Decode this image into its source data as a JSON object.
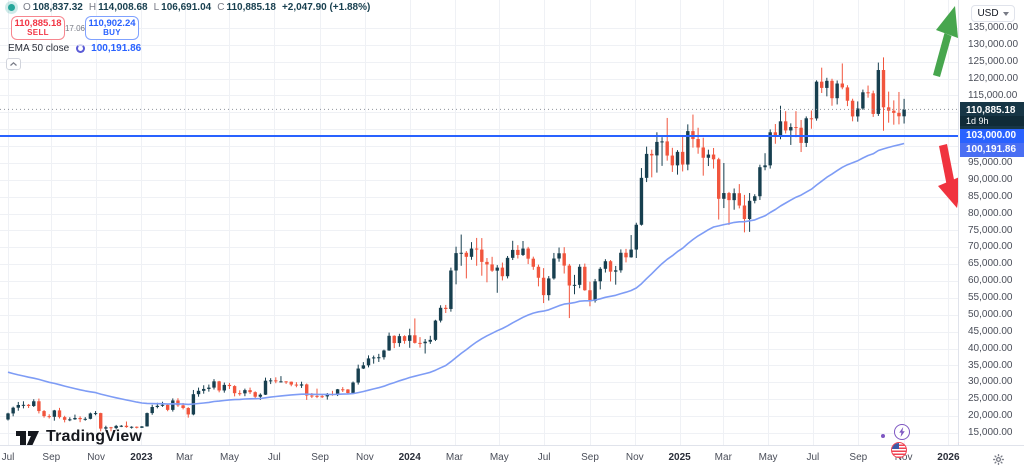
{
  "legend": {
    "ohlc": {
      "open_label": "O",
      "open": "108,837.32",
      "high_label": "H",
      "high": "114,008.68",
      "low_label": "L",
      "low": "106,691.04",
      "close_label": "C",
      "close": "110,885.18",
      "change": "+2,047.90 (+1.88%)"
    },
    "sell_button": {
      "price": "110,885.18",
      "label": "SELL"
    },
    "spread": "17.06",
    "buy_button": {
      "price": "110,902.24",
      "label": "BUY"
    },
    "ema_row": {
      "label": "EMA 50 close",
      "value": "100,191.86"
    }
  },
  "price_axis": {
    "currency": "USD",
    "tags": {
      "last": {
        "price_text": "110,885.18",
        "countdown": "1d 9h"
      },
      "line": {
        "price_text": "103,000.00"
      },
      "ema": {
        "price_text": "100,191.86"
      }
    }
  },
  "watermark_text": "TradingView",
  "colors": {
    "up": "#173F4F",
    "down": "#F1553D",
    "ema_line": "#7E9CF5",
    "level_line": "#2962FF",
    "last_price_line": "#8F939C",
    "grid": "#EFF1F5",
    "tag_last_bg": "#173646",
    "tag_countdown_bg": "#102B38",
    "tag_line_bg": "#2962FF",
    "tag_ema_bg": "#4A6FF3",
    "arrow_up": "#47A64E",
    "arrow_down": "#F0333F"
  },
  "chart_data": {
    "type": "candlestick",
    "timeframe": "weekly",
    "x_start": 8,
    "x_step": 5.15,
    "price_top": 143296,
    "price_bottom": 11444,
    "ylabel_format": "thousands-usd",
    "grid": true,
    "y_ticks": [
      135000,
      130000,
      125000,
      120000,
      115000,
      110000,
      105000,
      100000,
      95000,
      90000,
      85000,
      80000,
      75000,
      70000,
      65000,
      60000,
      55000,
      50000,
      45000,
      40000,
      35000,
      30000,
      25000,
      20000,
      15000
    ],
    "x_ticks": [
      {
        "label": "Jul",
        "week": 0.0
      },
      {
        "label": "Sep",
        "week": 8.4
      },
      {
        "label": "Nov",
        "week": 17.1
      },
      {
        "label": "2023",
        "week": 25.9,
        "year": true
      },
      {
        "label": "Mar",
        "week": 34.3
      },
      {
        "label": "May",
        "week": 43.0
      },
      {
        "label": "Jul",
        "week": 51.7
      },
      {
        "label": "Sep",
        "week": 60.6
      },
      {
        "label": "Nov",
        "week": 69.3
      },
      {
        "label": "2024",
        "week": 78.0,
        "year": true
      },
      {
        "label": "Mar",
        "week": 86.7
      },
      {
        "label": "May",
        "week": 95.4
      },
      {
        "label": "Jul",
        "week": 104.1
      },
      {
        "label": "Sep",
        "week": 113.0
      },
      {
        "label": "Nov",
        "week": 121.7
      },
      {
        "label": "2025",
        "week": 130.4,
        "year": true
      },
      {
        "label": "Mar",
        "week": 138.9
      },
      {
        "label": "May",
        "week": 147.6
      },
      {
        "label": "Jul",
        "week": 156.3
      },
      {
        "label": "Sep",
        "week": 165.1
      },
      {
        "label": "Nov",
        "week": 173.9
      },
      {
        "label": "2026",
        "week": 182.6,
        "year": true
      }
    ],
    "horizontal_line": 103000,
    "last_price": 110885.18,
    "ema": {
      "period": 50,
      "seed": 33500,
      "last_value": 100191.86
    },
    "candles": [
      [
        19000,
        21000,
        18700,
        20800
      ],
      [
        20800,
        22800,
        19950,
        22500
      ],
      [
        22500,
        24200,
        21600,
        23300
      ],
      [
        23300,
        24400,
        22300,
        23350
      ],
      [
        23350,
        23600,
        22400,
        23000
      ],
      [
        23000,
        25000,
        22700,
        24400
      ],
      [
        24400,
        25200,
        20800,
        21500
      ],
      [
        21500,
        21800,
        19550,
        20000
      ],
      [
        20000,
        20550,
        19300,
        19800
      ],
      [
        19800,
        21850,
        18650,
        21700
      ],
      [
        21700,
        22450,
        19300,
        19700
      ],
      [
        19700,
        20100,
        18150,
        18900
      ],
      [
        18900,
        19650,
        18500,
        19050
      ],
      [
        19050,
        20450,
        18900,
        19450
      ],
      [
        19450,
        19950,
        18200,
        19100
      ],
      [
        19100,
        19700,
        18650,
        19200
      ],
      [
        19200,
        21050,
        19050,
        20800
      ],
      [
        20800,
        21500,
        20250,
        20900
      ],
      [
        20900,
        21000,
        15500,
        16300
      ],
      [
        16300,
        17150,
        15750,
        16700
      ],
      [
        16700,
        16800,
        15500,
        16450
      ],
      [
        16450,
        17400,
        16050,
        17100
      ],
      [
        17100,
        17350,
        16750,
        17150
      ],
      [
        17150,
        18400,
        16550,
        16750
      ],
      [
        16750,
        17000,
        16300,
        16850
      ],
      [
        16850,
        16950,
        16350,
        16550
      ],
      [
        16550,
        17050,
        16500,
        16950
      ],
      [
        16950,
        21050,
        16900,
        20900
      ],
      [
        20900,
        23350,
        20400,
        22700
      ],
      [
        22700,
        23950,
        22300,
        23050
      ],
      [
        23050,
        24250,
        22750,
        23350
      ],
      [
        23350,
        23450,
        21450,
        21850
      ],
      [
        21850,
        25250,
        21350,
        24650
      ],
      [
        24650,
        25300,
        22750,
        23200
      ],
      [
        23200,
        23900,
        22000,
        22400
      ],
      [
        22400,
        22650,
        19550,
        20500
      ],
      [
        20500,
        27750,
        20250,
        26500
      ],
      [
        26500,
        28450,
        25750,
        27500
      ],
      [
        27500,
        29150,
        26650,
        28050
      ],
      [
        28050,
        29350,
        27250,
        28450
      ],
      [
        28450,
        30950,
        27900,
        30300
      ],
      [
        30300,
        30450,
        27050,
        27600
      ],
      [
        27600,
        29950,
        26950,
        29250
      ],
      [
        29250,
        29850,
        28050,
        28900
      ],
      [
        28900,
        29150,
        25850,
        26800
      ],
      [
        26800,
        27650,
        26050,
        26750
      ],
      [
        26750,
        28150,
        25900,
        27700
      ],
      [
        27700,
        28450,
        26550,
        27100
      ],
      [
        27100,
        27350,
        25350,
        25750
      ],
      [
        25750,
        26750,
        24800,
        26350
      ],
      [
        26350,
        31400,
        26250,
        30500
      ],
      [
        30500,
        31250,
        29500,
        30600
      ],
      [
        30600,
        31500,
        29750,
        30300
      ],
      [
        30300,
        31850,
        29950,
        30300
      ],
      [
        30300,
        30350,
        29550,
        30200
      ],
      [
        30200,
        30250,
        28850,
        29350
      ],
      [
        29350,
        30050,
        28550,
        29050
      ],
      [
        29050,
        30200,
        28350,
        29400
      ],
      [
        29400,
        29650,
        24800,
        26100
      ],
      [
        26100,
        26850,
        25350,
        26000
      ],
      [
        26000,
        28150,
        25350,
        25900
      ],
      [
        25900,
        26450,
        25350,
        25850
      ],
      [
        25850,
        26850,
        24900,
        26550
      ],
      [
        26550,
        27500,
        26050,
        26250
      ],
      [
        26250,
        28050,
        25950,
        27950
      ],
      [
        27950,
        28600,
        27150,
        27900
      ],
      [
        27900,
        28000,
        26550,
        26850
      ],
      [
        26850,
        30250,
        26650,
        29950
      ],
      [
        29950,
        35250,
        29350,
        34100
      ],
      [
        34100,
        36000,
        33950,
        35050
      ],
      [
        35050,
        38000,
        34450,
        37100
      ],
      [
        37100,
        37950,
        35550,
        37400
      ],
      [
        37400,
        38450,
        36050,
        37450
      ],
      [
        37450,
        39700,
        36750,
        39450
      ],
      [
        39450,
        44750,
        39350,
        43800
      ],
      [
        43800,
        43950,
        40150,
        41650
      ],
      [
        41650,
        44400,
        40550,
        43700
      ],
      [
        43700,
        43950,
        41450,
        42300
      ],
      [
        42300,
        45900,
        40250,
        43950
      ],
      [
        43950,
        48950,
        41500,
        41700
      ],
      [
        41700,
        43400,
        40300,
        41600
      ],
      [
        41600,
        42850,
        38550,
        42050
      ],
      [
        42050,
        43800,
        41400,
        42600
      ],
      [
        42600,
        48550,
        42250,
        48300
      ],
      [
        48300,
        52850,
        47750,
        52100
      ],
      [
        52100,
        52950,
        50550,
        51750
      ],
      [
        51750,
        64000,
        50950,
        63150
      ],
      [
        63150,
        70200,
        59050,
        68300
      ],
      [
        68300,
        73800,
        64550,
        68400
      ],
      [
        68400,
        68900,
        60800,
        67200
      ],
      [
        67200,
        71550,
        66350,
        69650
      ],
      [
        69650,
        72800,
        64550,
        69350
      ],
      [
        69350,
        72750,
        61600,
        65700
      ],
      [
        65700,
        66850,
        59650,
        64950
      ],
      [
        64950,
        67200,
        62750,
        63100
      ],
      [
        63100,
        64750,
        56550,
        64000
      ],
      [
        64000,
        65500,
        60200,
        61450
      ],
      [
        61450,
        67450,
        60800,
        66900
      ],
      [
        66900,
        71950,
        66250,
        69250
      ],
      [
        69250,
        70650,
        66700,
        67750
      ],
      [
        67750,
        71900,
        67450,
        69650
      ],
      [
        69650,
        70150,
        65050,
        66650
      ],
      [
        66650,
        67250,
        63350,
        64250
      ],
      [
        64250,
        64900,
        58450,
        61000
      ],
      [
        61000,
        63850,
        53500,
        55850
      ],
      [
        55850,
        61500,
        54250,
        60800
      ],
      [
        60800,
        68350,
        60450,
        66700
      ],
      [
        66700,
        69950,
        65750,
        68250
      ],
      [
        68250,
        70050,
        62250,
        64600
      ],
      [
        64600,
        65100,
        49050,
        58700
      ],
      [
        58700,
        61850,
        56100,
        58900
      ],
      [
        58900,
        65000,
        57900,
        64250
      ],
      [
        64250,
        65200,
        57150,
        57300
      ],
      [
        57300,
        59850,
        52550,
        54150
      ],
      [
        54150,
        60650,
        53650,
        59950
      ],
      [
        59950,
        64150,
        57550,
        63650
      ],
      [
        63650,
        66500,
        62550,
        65900
      ],
      [
        65900,
        66250,
        59900,
        62800
      ],
      [
        62800,
        64500,
        58950,
        63200
      ],
      [
        63200,
        69400,
        62500,
        68400
      ],
      [
        68400,
        69550,
        65550,
        67050
      ],
      [
        67050,
        73650,
        66950,
        69350
      ],
      [
        69350,
        77300,
        66850,
        76700
      ],
      [
        76700,
        93500,
        76450,
        90600
      ],
      [
        90600,
        99850,
        89350,
        97700
      ],
      [
        97700,
        98950,
        90750,
        97250
      ],
      [
        97250,
        104100,
        92150,
        101250
      ],
      [
        101250,
        102650,
        94150,
        101400
      ],
      [
        101400,
        108350,
        95700,
        97200
      ],
      [
        97200,
        99500,
        92350,
        94300
      ],
      [
        94300,
        98800,
        91550,
        98300
      ],
      [
        98300,
        102750,
        92500,
        94550
      ],
      [
        94550,
        106450,
        92850,
        104450
      ],
      [
        104450,
        109350,
        99550,
        102100
      ],
      [
        102100,
        105450,
        97750,
        99600
      ],
      [
        99600,
        102500,
        91250,
        96550
      ],
      [
        96550,
        98950,
        94100,
        97500
      ],
      [
        97500,
        99450,
        93350,
        96100
      ],
      [
        96100,
        96550,
        78250,
        84400
      ],
      [
        84400,
        95000,
        81650,
        86100
      ],
      [
        86100,
        86450,
        76650,
        84000
      ],
      [
        84000,
        87450,
        81150,
        86050
      ],
      [
        86050,
        88750,
        81550,
        82400
      ],
      [
        82400,
        85550,
        74450,
        78400
      ],
      [
        78400,
        86100,
        74600,
        83800
      ],
      [
        83800,
        85750,
        83050,
        85150
      ],
      [
        85150,
        94500,
        84050,
        93750
      ],
      [
        93750,
        97900,
        92850,
        94300
      ],
      [
        94300,
        104950,
        93350,
        104100
      ],
      [
        104100,
        106550,
        100700,
        103150
      ],
      [
        103150,
        111950,
        102050,
        107350
      ],
      [
        107350,
        110350,
        103750,
        104650
      ],
      [
        104650,
        106750,
        100350,
        105650
      ],
      [
        105650,
        110350,
        102650,
        105450
      ],
      [
        105450,
        107750,
        98250,
        100950
      ],
      [
        100950,
        108800,
        99750,
        108250
      ],
      [
        108250,
        110550,
        105150,
        108200
      ],
      [
        108200,
        119500,
        107550,
        119100
      ],
      [
        119100,
        123250,
        115750,
        117250
      ],
      [
        117250,
        120250,
        114750,
        119350
      ],
      [
        119350,
        119950,
        111950,
        114200
      ],
      [
        114200,
        119450,
        112350,
        118550
      ],
      [
        118550,
        124500,
        116850,
        117400
      ],
      [
        117400,
        118050,
        111850,
        113450
      ],
      [
        113450,
        114050,
        107350,
        108800
      ],
      [
        108800,
        113250,
        107250,
        111150
      ],
      [
        111150,
        116750,
        110750,
        115950
      ],
      [
        115950,
        117950,
        114350,
        115650
      ],
      [
        115650,
        116450,
        108650,
        109550
      ],
      [
        109550,
        124750,
        108950,
        122550
      ],
      [
        122550,
        126300,
        104550,
        111500
      ],
      [
        111500,
        116150,
        106950,
        110500
      ],
      [
        110500,
        113550,
        106350,
        109850
      ],
      [
        109850,
        116050,
        106450,
        108837
      ],
      [
        108837.32,
        114008.68,
        106691.04,
        110885.18
      ]
    ],
    "events": [
      {
        "type": "crypto-event",
        "week": 173.5
      },
      {
        "type": "us-economic-event",
        "week": 173.0
      }
    ]
  }
}
